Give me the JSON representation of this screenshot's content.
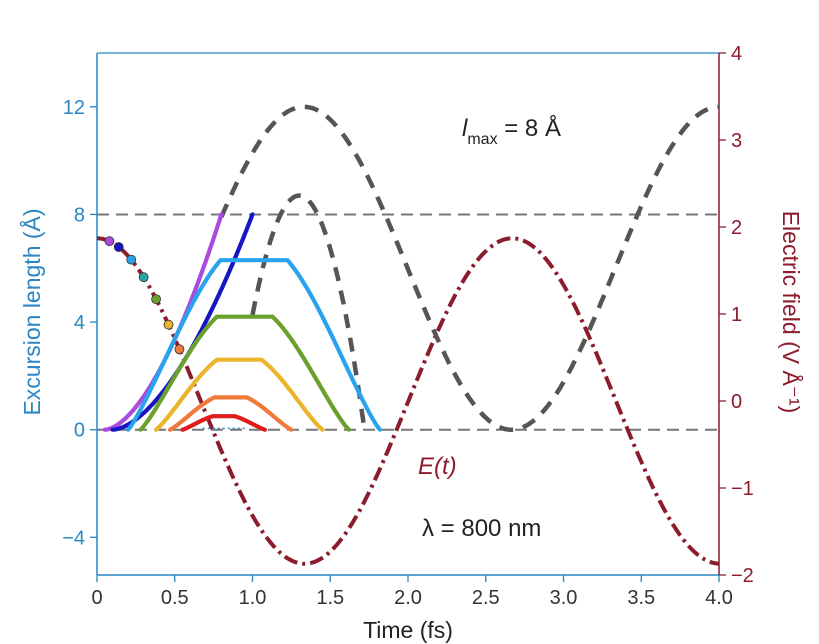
{
  "chart_data": {
    "type": "line",
    "xlabel": "Time (fs)",
    "ylabel_left": "Excursion length (Å)",
    "ylabel_right": "Electric field (V Å⁻¹)",
    "xlim": [
      0,
      4.0
    ],
    "ylim_left": [
      -5.4,
      14
    ],
    "ylim_right": [
      -2,
      4
    ],
    "x_ticks": [
      "0",
      "0.5",
      "1.0",
      "1.5",
      "2.0",
      "2.5",
      "3.0",
      "3.5",
      "4.0"
    ],
    "y_left_ticks": [
      "−4",
      "0",
      "4",
      "8",
      "12"
    ],
    "y_right_ticks": [
      "−2",
      "−1",
      "0",
      "1",
      "2",
      "3",
      "4"
    ],
    "colors": {
      "left_axis": "#2a86c4",
      "right_axis": "#8b1c2c",
      "field": "#8b1c2c",
      "dashed_trajectory": "#555555",
      "reference_line": "#777777"
    },
    "annotations": {
      "lmax_main": "l",
      "lmax_sub": "max",
      "lmax_rest": " = 8 Å",
      "field_label": "E(t)",
      "wavelength": "λ = 800 nm"
    },
    "reference_lines_left": [
      0,
      8
    ],
    "field_series": {
      "name": "E(t)",
      "amplitude": 1.87,
      "period_fs": 2.67
    },
    "trajectories": [
      {
        "color": "#a94be0",
        "t_start": 0.05,
        "t_end": 0.8,
        "peak": 8.0
      },
      {
        "color": "#1515c4",
        "t_start": 0.1,
        "t_end": 1.0,
        "peak": 8.0
      },
      {
        "color": "#2aa3ef",
        "t_start": 0.2,
        "t_end": 1.82,
        "peak": 6.3
      },
      {
        "color": "#6ca02c",
        "t_start": 0.28,
        "t_end": 1.62,
        "peak": 4.2
      },
      {
        "color": "#eab42b",
        "t_start": 0.38,
        "t_end": 1.45,
        "peak": 2.6
      },
      {
        "color": "#ef7a3a",
        "t_start": 0.47,
        "t_end": 1.25,
        "peak": 1.2
      },
      {
        "color": "#e01d1d",
        "t_start": 0.55,
        "t_end": 1.08,
        "peak": 0.5
      }
    ],
    "dashed_continuations": [
      {
        "t_start": 0.8,
        "t_end": 4.0,
        "peak": 12.0,
        "period_fs": 2.67,
        "t_peak": 1.33
      },
      {
        "t_start": 1.0,
        "t_end": 1.72,
        "peak": 8.7,
        "t_peak": 1.3
      }
    ],
    "ionization_markers": [
      {
        "t": 0.08,
        "color": "#a94be0"
      },
      {
        "t": 0.14,
        "color": "#1515c4"
      },
      {
        "t": 0.22,
        "color": "#2aa3ef"
      },
      {
        "t": 0.3,
        "color": "#2aa3a3"
      },
      {
        "t": 0.38,
        "color": "#6ca02c"
      },
      {
        "t": 0.46,
        "color": "#eab42b"
      },
      {
        "t": 0.53,
        "color": "#ef7a3a"
      }
    ]
  }
}
